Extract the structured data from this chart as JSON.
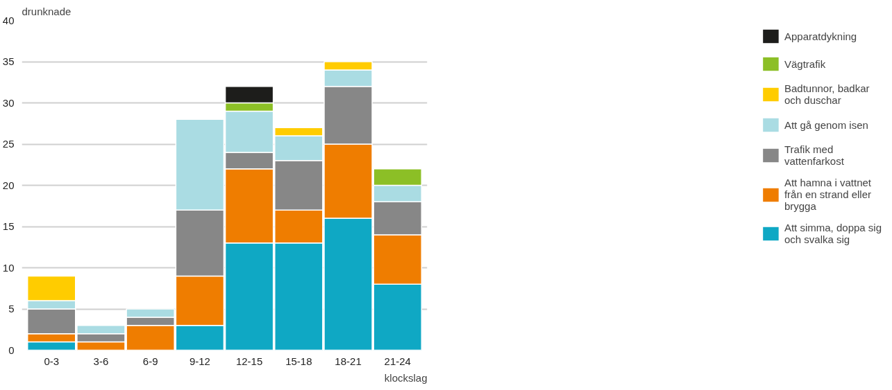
{
  "chart_data": {
    "type": "bar",
    "stacked": true,
    "ylabel": "drunknade",
    "xlabel": "klockslag",
    "categories": [
      "0-3",
      "3-6",
      "6-9",
      "9-12",
      "12-15",
      "15-18",
      "18-21",
      "21-24"
    ],
    "ylim": [
      0,
      40
    ],
    "yticks": [
      0,
      5,
      10,
      15,
      20,
      25,
      30,
      35,
      40
    ],
    "grid": "y",
    "legend": "right",
    "series": [
      {
        "name": "Att simma, doppa sig och svalka sig",
        "color": "#0fa8c4",
        "values": [
          1,
          0,
          0,
          3,
          13,
          13,
          16,
          8
        ]
      },
      {
        "name": "Att hamna i vattnet från en strand eller brygga",
        "color": "#ef7d00",
        "values": [
          1,
          1,
          3,
          6,
          9,
          4,
          9,
          6
        ]
      },
      {
        "name": "Trafik med vattenfarkost",
        "color": "#878787",
        "values": [
          3,
          1,
          1,
          8,
          2,
          6,
          7,
          4
        ]
      },
      {
        "name": "Att gå genom isen",
        "color": "#aadce3",
        "values": [
          1,
          1,
          1,
          11,
          5,
          3,
          2,
          2
        ]
      },
      {
        "name": "Badtunnor, badkar och duschar",
        "color": "#ffcc00",
        "values": [
          3,
          0,
          0,
          0,
          0,
          1,
          1,
          0
        ]
      },
      {
        "name": "Vägtrafik",
        "color": "#8cbf26",
        "values": [
          0,
          0,
          0,
          0,
          1,
          0,
          0,
          2
        ]
      },
      {
        "name": "Apparatdykning",
        "color": "#1d1d1b",
        "values": [
          0,
          0,
          0,
          0,
          2,
          0,
          0,
          0
        ]
      }
    ]
  }
}
